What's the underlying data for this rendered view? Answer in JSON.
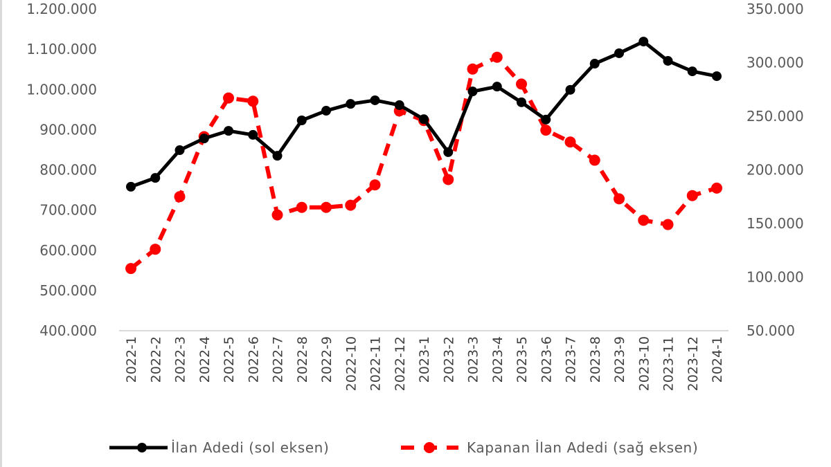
{
  "chart_data": {
    "type": "line",
    "title": "",
    "xlabel": "",
    "ylabel": "",
    "grid": false,
    "legend_position": "bottom",
    "categories": [
      "2022-1",
      "2022-2",
      "2022-3",
      "2022-4",
      "2022-5",
      "2022-6",
      "2022-7",
      "2022-8",
      "2022-9",
      "2022-10",
      "2022-11",
      "2022-12",
      "2023-1",
      "2023-2",
      "2023-3",
      "2023-4",
      "2023-5",
      "2023-6",
      "2023-7",
      "2023-8",
      "2023-9",
      "2023-10",
      "2023-11",
      "2023-12",
      "2024-1"
    ],
    "left_axis": {
      "ylim": [
        400000,
        1200000
      ],
      "ticks": [
        400000,
        500000,
        600000,
        700000,
        800000,
        900000,
        1000000,
        1100000,
        1200000
      ],
      "tick_labels": [
        "400.000",
        "500.000",
        "600.000",
        "700.000",
        "800.000",
        "900.000",
        "1.000.000",
        "1.100.000",
        "1.200.000"
      ]
    },
    "right_axis": {
      "ylim": [
        50000,
        350000
      ],
      "ticks": [
        50000,
        100000,
        150000,
        200000,
        250000,
        300000,
        350000
      ],
      "tick_labels": [
        "50.000",
        "100.000",
        "150.000",
        "200.000",
        "250.000",
        "300.000",
        "350.000"
      ]
    },
    "series": [
      {
        "name": "İlan Adedi (sol eksen)",
        "axis": "left",
        "color": "#000000",
        "style": "solid",
        "values": [
          758000,
          780000,
          849000,
          878000,
          897000,
          887000,
          835000,
          923000,
          947000,
          964000,
          973000,
          961000,
          926000,
          844000,
          995000,
          1007000,
          968000,
          925000,
          999000,
          1064000,
          1090000,
          1119000,
          1071000,
          1045000,
          1033000
        ]
      },
      {
        "name": "Kapanan İlan Adedi (sağ eksen)",
        "axis": "right",
        "color": "#ff0000",
        "style": "dashed",
        "values": [
          108000,
          126000,
          175000,
          231000,
          267000,
          264000,
          158000,
          165000,
          165000,
          167000,
          186000,
          255000,
          246000,
          191000,
          294000,
          305000,
          280000,
          237000,
          226000,
          209000,
          173000,
          153000,
          149000,
          176000,
          183000
        ]
      }
    ]
  },
  "legend": {
    "items": [
      {
        "label": "İlan Adedi (sol eksen)",
        "color": "#000000",
        "style": "solid"
      },
      {
        "label": "Kapanan İlan Adedi (sağ eksen)",
        "color": "#ff0000",
        "style": "dashed"
      }
    ]
  }
}
